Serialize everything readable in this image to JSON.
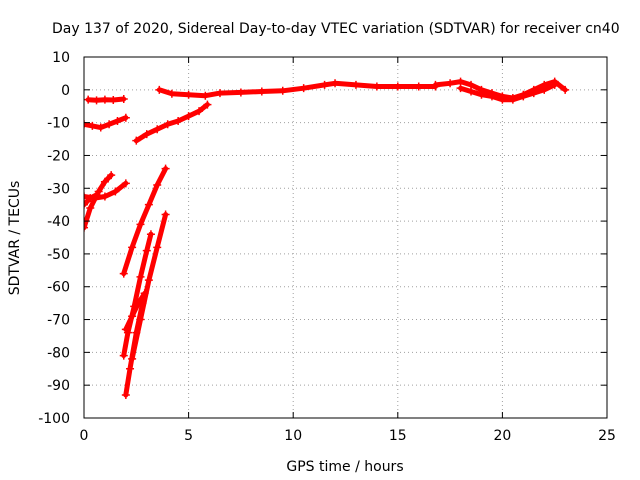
{
  "chart_data": {
    "type": "scatter",
    "title": "Day 137 of 2020, Sidereal Day-to-day VTEC variation (SDTVAR) for receiver cn40",
    "xlabel": "GPS time / hours",
    "ylabel": "SDTVAR / TECUs",
    "xlim": [
      0,
      25
    ],
    "ylim": [
      -100,
      10
    ],
    "xticks": [
      0,
      5,
      10,
      15,
      20,
      25
    ],
    "yticks": [
      -100,
      -90,
      -80,
      -70,
      -60,
      -50,
      -40,
      -30,
      -20,
      -10,
      0,
      10
    ],
    "grid": true,
    "marker": "plus",
    "color": "#ff0000",
    "series": [
      {
        "x": [
          0.2,
          0.6,
          1.0,
          1.4,
          1.9
        ],
        "y": [
          -3,
          -3.2,
          -3,
          -3.1,
          -2.8
        ]
      },
      {
        "x": [
          0.0,
          0.4,
          0.8,
          1.2,
          1.6,
          2.0
        ],
        "y": [
          -10.5,
          -11,
          -11.5,
          -10.5,
          -9.5,
          -8.5
        ]
      },
      {
        "x": [
          2.5,
          3.0,
          3.5,
          4.0,
          4.5,
          5.0,
          5.5,
          5.9
        ],
        "y": [
          -15.5,
          -13.5,
          -12,
          -10.5,
          -9.5,
          -8,
          -6.5,
          -4.5
        ]
      },
      {
        "x": [
          3.6,
          4.2,
          5.0,
          5.8,
          6.5,
          7.5,
          8.5,
          9.5,
          10.5,
          11.5,
          12.0,
          13.0,
          14.0,
          15.0,
          16.0,
          16.8
        ],
        "y": [
          0,
          -1.2,
          -1.5,
          -1.8,
          -1,
          -0.8,
          -0.5,
          -0.3,
          0.5,
          1.5,
          2,
          1.5,
          1,
          1,
          1,
          1
        ]
      },
      {
        "x": [
          16.8,
          17.5,
          18.0,
          18.5,
          19.0,
          19.5,
          20.0,
          20.5,
          21.0,
          21.5,
          22.0,
          22.5,
          23.0
        ],
        "y": [
          1.5,
          2,
          2.5,
          1.5,
          0,
          -1,
          -2,
          -2.5,
          -1.5,
          0,
          1.5,
          2.5,
          0
        ]
      },
      {
        "x": [
          18.0,
          18.5,
          19.0,
          19.5,
          20.0,
          20.5,
          21.0,
          21.5,
          22.0,
          22.5
        ],
        "y": [
          0.5,
          -0.5,
          -1.5,
          -2,
          -3,
          -3,
          -2,
          -1,
          0,
          1.5
        ]
      },
      {
        "x": [
          0.0,
          0.3,
          0.7,
          1.0,
          1.3
        ],
        "y": [
          -42,
          -36,
          -31,
          -28,
          -26
        ]
      },
      {
        "x": [
          0.0,
          0.5,
          1.0,
          1.5,
          2.0
        ],
        "y": [
          -32.5,
          -33,
          -32.5,
          -31,
          -28.5
        ]
      },
      {
        "x": [
          0.0,
          0.3,
          0.6
        ],
        "y": [
          -35,
          -33,
          -32
        ]
      },
      {
        "x": [
          1.9,
          2.3,
          2.7,
          3.1,
          3.5,
          3.9
        ],
        "y": [
          -56,
          -48,
          -41,
          -35,
          -29,
          -24
        ]
      },
      {
        "x": [
          1.9,
          2.1,
          2.4,
          2.7,
          3.0,
          3.2
        ],
        "y": [
          -81,
          -74,
          -66,
          -57,
          -49,
          -44
        ]
      },
      {
        "x": [
          2.0,
          2.2,
          2.5,
          2.8
        ],
        "y": [
          -93,
          -85,
          -74,
          -65
        ]
      },
      {
        "x": [
          2.3,
          2.7,
          3.1,
          3.5,
          3.9
        ],
        "y": [
          -82,
          -70,
          -58,
          -48,
          -38
        ]
      },
      {
        "x": [
          2.0,
          2.3,
          2.6,
          2.9
        ],
        "y": [
          -73,
          -69,
          -65,
          -62
        ]
      }
    ]
  }
}
